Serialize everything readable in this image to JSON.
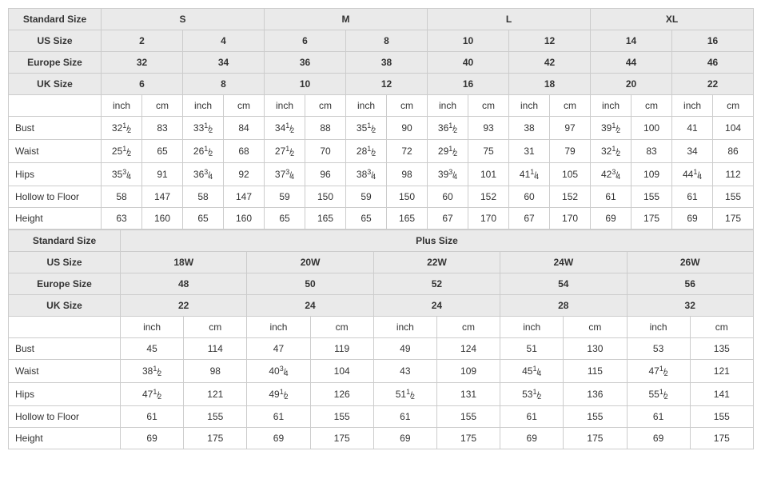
{
  "colors": {
    "header_bg": "#eaeaea",
    "border": "#cccccc",
    "text": "#333333",
    "bg": "#ffffff"
  },
  "font_size_pt": 12,
  "table1": {
    "row_labels": {
      "standard_size": "Standard Size",
      "us_size": "US Size",
      "europe_size": "Europe Size",
      "uk_size": "UK Size",
      "unit_inch": "inch",
      "unit_cm": "cm",
      "bust": "Bust",
      "waist": "Waist",
      "hips": "Hips",
      "hollow": "Hollow to Floor",
      "height": "Height"
    },
    "standard_sizes": [
      "S",
      "M",
      "L",
      "XL"
    ],
    "us_sizes": [
      "2",
      "4",
      "6",
      "8",
      "10",
      "12",
      "14",
      "16"
    ],
    "europe_sizes": [
      "32",
      "34",
      "36",
      "38",
      "40",
      "42",
      "44",
      "46"
    ],
    "uk_sizes": [
      "6",
      "8",
      "10",
      "12",
      "16",
      "18",
      "20",
      "22"
    ],
    "bust": [
      {
        "in": "32½",
        "cm": "83"
      },
      {
        "in": "33½",
        "cm": "84"
      },
      {
        "in": "34½",
        "cm": "88"
      },
      {
        "in": "35½",
        "cm": "90"
      },
      {
        "in": "36½",
        "cm": "93"
      },
      {
        "in": "38",
        "cm": "97"
      },
      {
        "in": "39½",
        "cm": "100"
      },
      {
        "in": "41",
        "cm": "104"
      }
    ],
    "waist": [
      {
        "in": "25½",
        "cm": "65"
      },
      {
        "in": "26½",
        "cm": "68"
      },
      {
        "in": "27½",
        "cm": "70"
      },
      {
        "in": "28½",
        "cm": "72"
      },
      {
        "in": "29½",
        "cm": "75"
      },
      {
        "in": "31",
        "cm": "79"
      },
      {
        "in": "32½",
        "cm": "83"
      },
      {
        "in": "34",
        "cm": "86"
      }
    ],
    "hips": [
      {
        "in": "35¾",
        "cm": "91"
      },
      {
        "in": "36¾",
        "cm": "92"
      },
      {
        "in": "37¾",
        "cm": "96"
      },
      {
        "in": "38¾",
        "cm": "98"
      },
      {
        "in": "39¾",
        "cm": "101"
      },
      {
        "in": "41¼",
        "cm": "105"
      },
      {
        "in": "42¾",
        "cm": "109"
      },
      {
        "in": "44¼",
        "cm": "112"
      }
    ],
    "hollow": [
      {
        "in": "58",
        "cm": "147"
      },
      {
        "in": "58",
        "cm": "147"
      },
      {
        "in": "59",
        "cm": "150"
      },
      {
        "in": "59",
        "cm": "150"
      },
      {
        "in": "60",
        "cm": "152"
      },
      {
        "in": "60",
        "cm": "152"
      },
      {
        "in": "61",
        "cm": "155"
      },
      {
        "in": "61",
        "cm": "155"
      }
    ],
    "height": [
      {
        "in": "63",
        "cm": "160"
      },
      {
        "in": "65",
        "cm": "160"
      },
      {
        "in": "65",
        "cm": "165"
      },
      {
        "in": "65",
        "cm": "165"
      },
      {
        "in": "67",
        "cm": "170"
      },
      {
        "in": "67",
        "cm": "170"
      },
      {
        "in": "69",
        "cm": "175"
      },
      {
        "in": "69",
        "cm": "175"
      }
    ]
  },
  "table2": {
    "row_labels": {
      "standard_size": "Standard Size",
      "plus_size": "Plus Size",
      "us_size": "US Size",
      "europe_size": "Europe Size",
      "uk_size": "UK Size",
      "unit_inch": "inch",
      "unit_cm": "cm",
      "bust": "Bust",
      "waist": "Waist",
      "hips": "Hips",
      "hollow": "Hollow to Floor",
      "height": "Height"
    },
    "us_sizes": [
      "18W",
      "20W",
      "22W",
      "24W",
      "26W"
    ],
    "europe_sizes": [
      "48",
      "50",
      "52",
      "54",
      "56"
    ],
    "uk_sizes": [
      "22",
      "24",
      "24",
      "28",
      "32"
    ],
    "bust": [
      {
        "in": "45",
        "cm": "114"
      },
      {
        "in": "47",
        "cm": "119"
      },
      {
        "in": "49",
        "cm": "124"
      },
      {
        "in": "51",
        "cm": "130"
      },
      {
        "in": "53",
        "cm": "135"
      }
    ],
    "waist": [
      {
        "in": "38½",
        "cm": "98"
      },
      {
        "in": "40¾",
        "cm": "104"
      },
      {
        "in": "43",
        "cm": "109"
      },
      {
        "in": "45¼",
        "cm": "115"
      },
      {
        "in": "47½",
        "cm": "121"
      }
    ],
    "hips": [
      {
        "in": "47½",
        "cm": "121"
      },
      {
        "in": "49½",
        "cm": "126"
      },
      {
        "in": "51½",
        "cm": "131"
      },
      {
        "in": "53½",
        "cm": "136"
      },
      {
        "in": "55½",
        "cm": "141"
      }
    ],
    "hollow": [
      {
        "in": "61",
        "cm": "155"
      },
      {
        "in": "61",
        "cm": "155"
      },
      {
        "in": "61",
        "cm": "155"
      },
      {
        "in": "61",
        "cm": "155"
      },
      {
        "in": "61",
        "cm": "155"
      }
    ],
    "height": [
      {
        "in": "69",
        "cm": "175"
      },
      {
        "in": "69",
        "cm": "175"
      },
      {
        "in": "69",
        "cm": "175"
      },
      {
        "in": "69",
        "cm": "175"
      },
      {
        "in": "69",
        "cm": "175"
      }
    ]
  }
}
